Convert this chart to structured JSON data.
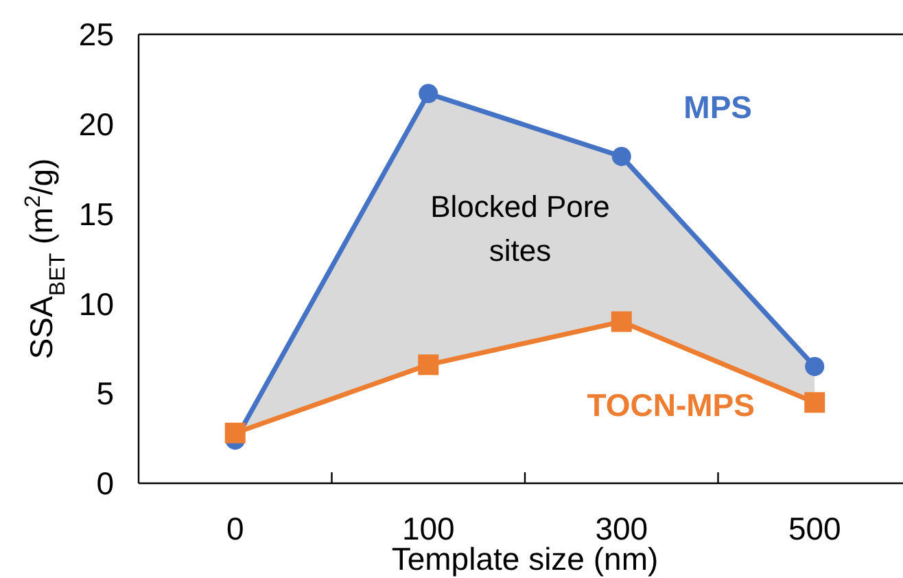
{
  "chart_data": {
    "type": "line",
    "xlabel": "Template size (nm)",
    "ylabel": "SSA$_{BET}$ (m$^{2}$/g)",
    "categories": [
      "0",
      "100",
      "300",
      "500"
    ],
    "ylim": [
      0,
      25
    ],
    "yticks": [
      0,
      5,
      10,
      15,
      20,
      25
    ],
    "grid": false,
    "annotations": [
      "Blocked Pore sites"
    ],
    "series": [
      {
        "name": "MPS",
        "color": "#4472c4",
        "marker": "circle",
        "values": [
          2.4,
          21.7,
          18.2,
          6.5
        ],
        "lower": [
          2.8,
          6.6,
          9.0,
          4.5
        ],
        "upper": [
          2.4,
          21.7,
          18.2,
          6.5
        ]
      },
      {
        "name": "TOCN-MPS",
        "color": "#ed7d31",
        "marker": "square",
        "values": [
          2.8,
          6.6,
          9.0,
          4.5
        ]
      }
    ]
  }
}
